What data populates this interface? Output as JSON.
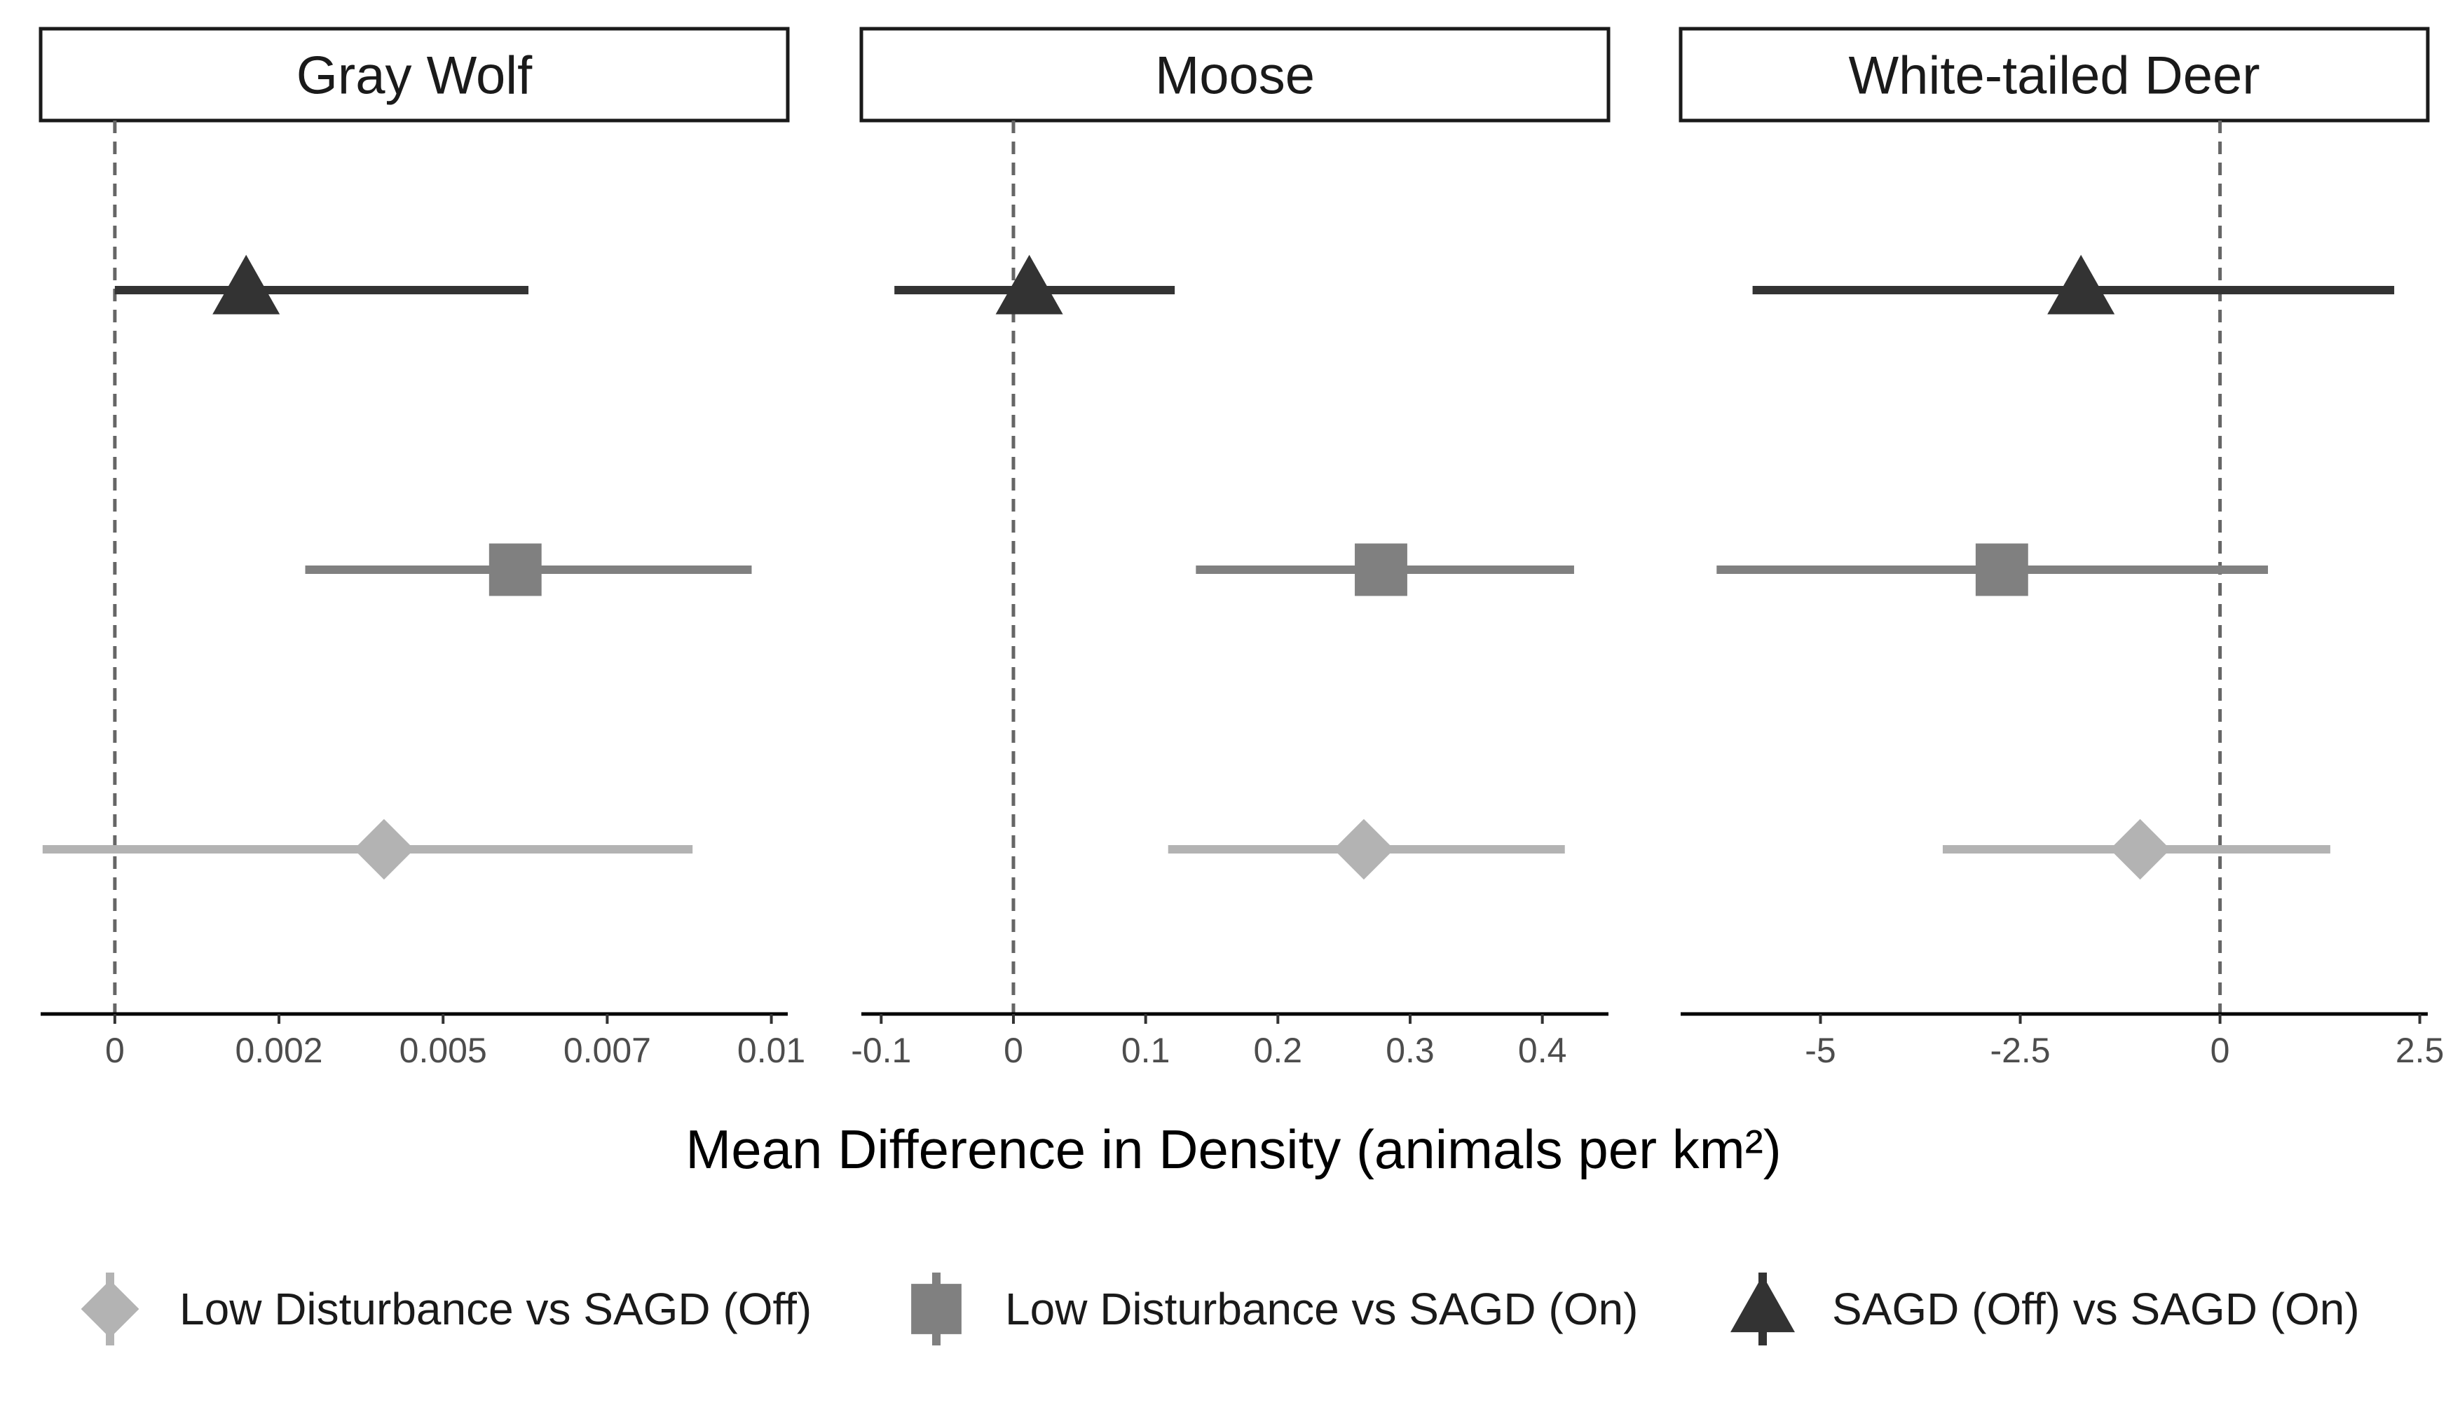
{
  "chart_data": {
    "type": "forest",
    "xlabel": "Mean Difference in Density (animals per km²)",
    "reference_line": 0,
    "legend": {
      "placement": "bottom",
      "entries": [
        {
          "label": "Low Disturbance vs SAGD (Off)",
          "shape": "diamond",
          "color": "#b3b3b3"
        },
        {
          "label": "Low Disturbance vs SAGD (On)",
          "shape": "square",
          "color": "#808080"
        },
        {
          "label": "SAGD (Off) vs SAGD (On)",
          "shape": "triangle",
          "color": "#333333"
        }
      ]
    },
    "panels": [
      {
        "title": "Gray Wolf",
        "xlim": [
          -0.00113,
          0.01025
        ],
        "ticks": [
          0,
          0.0025,
          0.005,
          0.0075,
          0.01
        ],
        "tick_labels": [
          "0",
          "0.002",
          "0.005",
          "0.007",
          "0.01"
        ],
        "estimates": [
          {
            "comparison": "Low Disturbance vs SAGD (Off)",
            "mean": 0.0041,
            "lower": -0.0011,
            "upper": 0.0088
          },
          {
            "comparison": "Low Disturbance vs SAGD (On)",
            "mean": 0.0061,
            "lower": 0.0029,
            "upper": 0.0097
          },
          {
            "comparison": "SAGD (Off) vs SAGD (On)",
            "mean": 0.002,
            "lower": 0.0,
            "upper": 0.0063
          }
        ]
      },
      {
        "title": "Moose",
        "xlim": [
          -0.115,
          0.45
        ],
        "ticks": [
          -0.1,
          0,
          0.1,
          0.2,
          0.3,
          0.4
        ],
        "tick_labels": [
          "-0.1",
          "0",
          "0.1",
          "0.2",
          "0.3",
          "0.4"
        ],
        "estimates": [
          {
            "comparison": "Low Disturbance vs SAGD (Off)",
            "mean": 0.265,
            "lower": 0.117,
            "upper": 0.417
          },
          {
            "comparison": "Low Disturbance vs SAGD (On)",
            "mean": 0.278,
            "lower": 0.138,
            "upper": 0.424
          },
          {
            "comparison": "SAGD (Off) vs SAGD (On)",
            "mean": 0.012,
            "lower": -0.09,
            "upper": 0.122
          }
        ]
      },
      {
        "title": "White-tailed Deer",
        "xlim": [
          -6.75,
          2.6
        ],
        "ticks": [
          -5,
          -2.5,
          0,
          2.5
        ],
        "tick_labels": [
          "-5",
          "-2.5",
          "0",
          "2.5"
        ],
        "estimates": [
          {
            "comparison": "Low Disturbance vs SAGD (Off)",
            "mean": -1.0,
            "lower": -3.47,
            "upper": 1.38
          },
          {
            "comparison": "Low Disturbance vs SAGD (On)",
            "mean": -2.73,
            "lower": -6.3,
            "upper": 0.6
          },
          {
            "comparison": "SAGD (Off) vs SAGD (On)",
            "mean": -1.74,
            "lower": -5.85,
            "upper": 2.18
          }
        ]
      }
    ]
  }
}
